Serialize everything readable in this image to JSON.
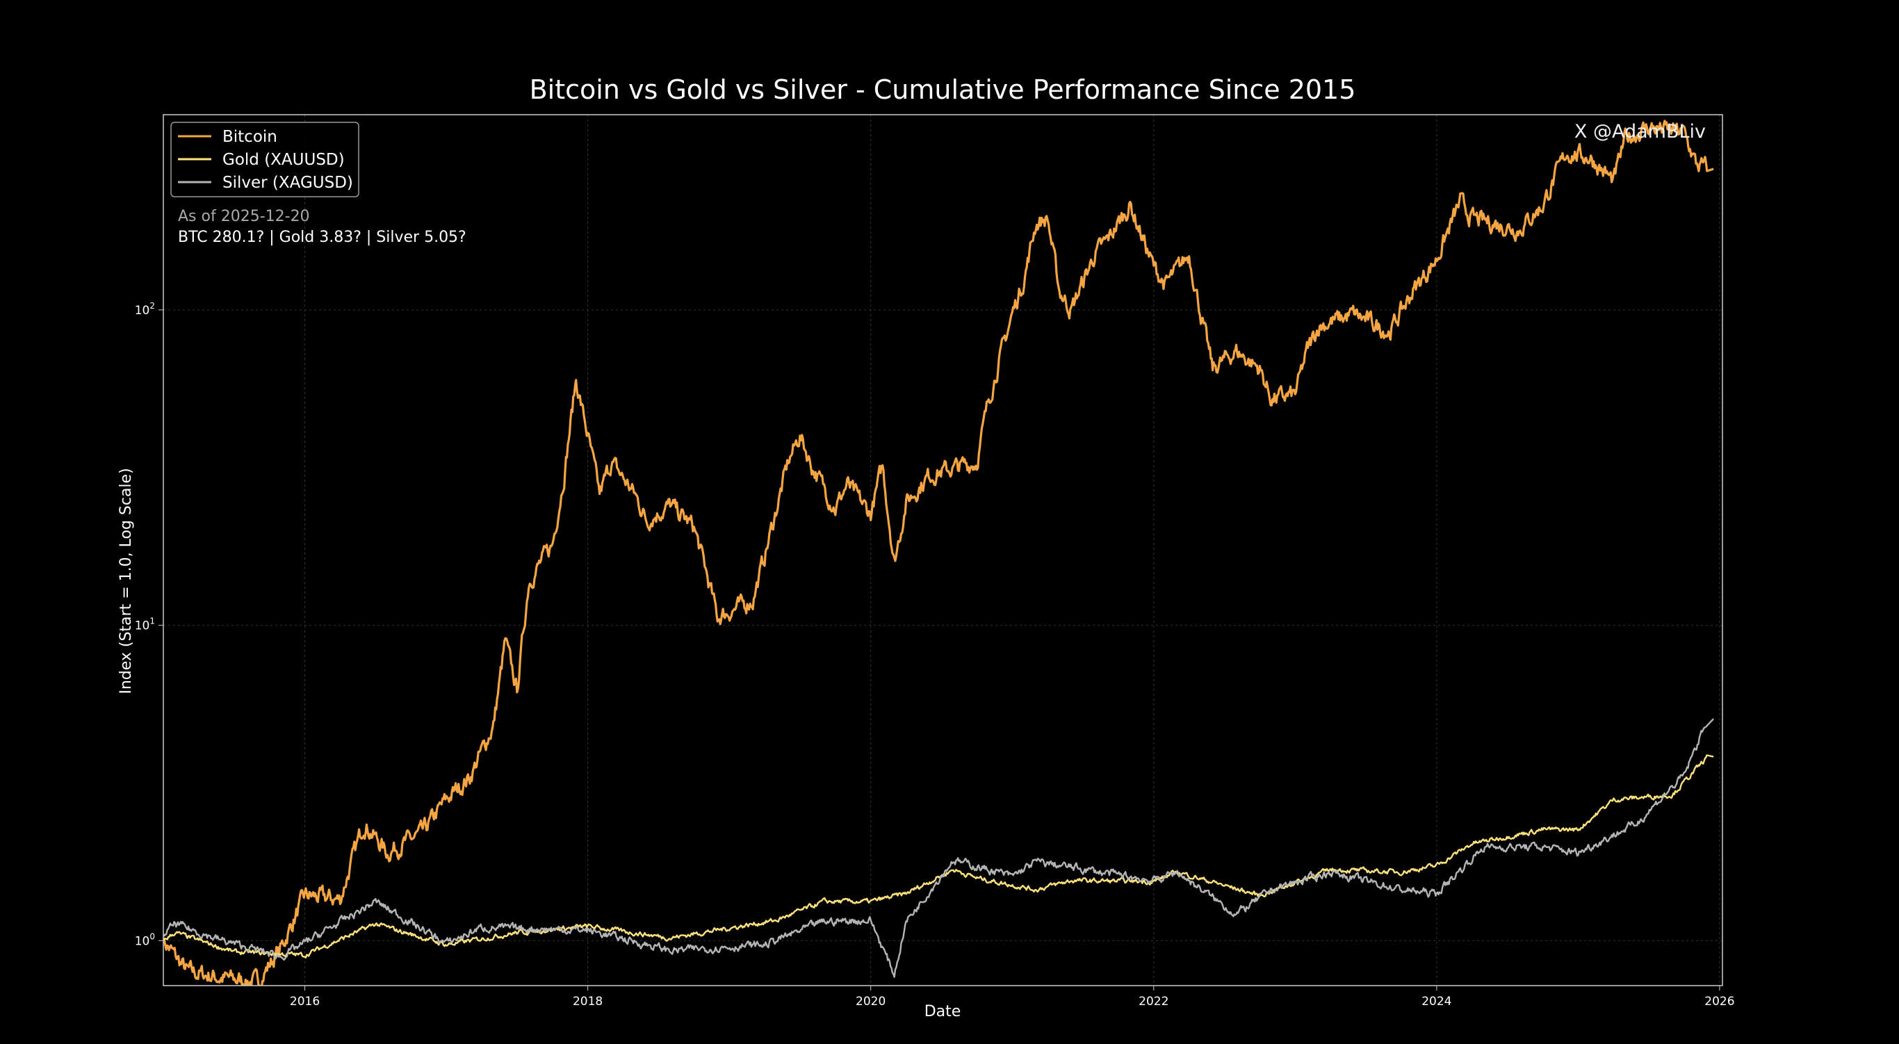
{
  "chart_data": {
    "type": "line",
    "title": "Bitcoin vs Gold vs Silver - Cumulative Performance Since 2015",
    "xlabel": "Date",
    "ylabel": "Index (Start = 1.0, Log Scale)",
    "xlim": [
      "2015-01",
      "2026-01"
    ],
    "ylim": [
      0.72,
      416
    ],
    "yscale": "log",
    "grid": true,
    "legend_position": "top-left",
    "x_ticks": [
      "2016",
      "2018",
      "2020",
      "2022",
      "2024",
      "2026"
    ],
    "y_ticks": [
      {
        "value": 1,
        "base": "10",
        "exp": "0"
      },
      {
        "value": 10,
        "base": "10",
        "exp": "1"
      },
      {
        "value": 100,
        "base": "10",
        "exp": "2"
      }
    ],
    "watermark": "X @AdamBLiv",
    "annotation": {
      "line1": "As of 2025-12-20",
      "line2": "BTC 280.1?  |  Gold 3.83?  |  Silver 5.05?"
    },
    "series": [
      {
        "name": "Bitcoin",
        "color": "#f5a542",
        "points": [
          [
            "2015-01",
            1.0
          ],
          [
            "2015-03",
            0.8
          ],
          [
            "2015-06",
            0.76
          ],
          [
            "2015-09",
            0.74
          ],
          [
            "2015-11",
            0.95
          ],
          [
            "2016-01",
            1.39
          ],
          [
            "2016-04",
            1.35
          ],
          [
            "2016-06",
            2.36
          ],
          [
            "2016-08",
            1.9
          ],
          [
            "2016-11",
            2.2
          ],
          [
            "2017-01",
            2.8
          ],
          [
            "2017-03",
            3.3
          ],
          [
            "2017-05",
            4.8
          ],
          [
            "2017-06",
            8.9
          ],
          [
            "2017-07",
            6.2
          ],
          [
            "2017-08",
            13.8
          ],
          [
            "2017-10",
            18
          ],
          [
            "2017-11",
            30
          ],
          [
            "2017-12",
            60
          ],
          [
            "2018-01",
            40
          ],
          [
            "2018-02",
            26
          ],
          [
            "2018-03",
            33
          ],
          [
            "2018-05",
            26
          ],
          [
            "2018-06",
            21.5
          ],
          [
            "2018-08",
            24
          ],
          [
            "2018-10",
            20.5
          ],
          [
            "2018-11",
            15
          ],
          [
            "2018-12",
            10.6
          ],
          [
            "2019-03",
            12
          ],
          [
            "2019-04",
            16.5
          ],
          [
            "2019-06",
            33
          ],
          [
            "2019-07",
            40
          ],
          [
            "2019-08",
            32
          ],
          [
            "2019-10",
            23.5
          ],
          [
            "2019-11",
            28
          ],
          [
            "2020-01",
            22.5
          ],
          [
            "2020-02",
            32
          ],
          [
            "2020-03",
            15.8
          ],
          [
            "2020-04",
            24.5
          ],
          [
            "2020-06",
            30
          ],
          [
            "2020-10",
            33
          ],
          [
            "2020-11",
            52
          ],
          [
            "2021-01",
            97
          ],
          [
            "2021-02",
            125
          ],
          [
            "2021-03",
            188
          ],
          [
            "2021-04",
            195
          ],
          [
            "2021-05",
            115
          ],
          [
            "2021-06",
            100
          ],
          [
            "2021-08",
            150
          ],
          [
            "2021-09",
            165
          ],
          [
            "2021-11",
            215
          ],
          [
            "2022-01",
            137
          ],
          [
            "2022-02",
            120
          ],
          [
            "2022-04",
            150
          ],
          [
            "2022-05",
            97
          ],
          [
            "2022-06",
            65
          ],
          [
            "2022-08",
            74
          ],
          [
            "2022-10",
            65
          ],
          [
            "2022-11",
            52
          ],
          [
            "2023-01",
            54
          ],
          [
            "2023-02",
            74
          ],
          [
            "2023-03",
            89
          ],
          [
            "2023-06",
            97
          ],
          [
            "2023-09",
            85
          ],
          [
            "2023-11",
            115
          ],
          [
            "2024-01",
            145
          ],
          [
            "2024-03",
            220
          ],
          [
            "2024-04",
            195
          ],
          [
            "2024-08",
            180
          ],
          [
            "2024-10",
            215
          ],
          [
            "2024-12",
            315
          ],
          [
            "2025-02",
            305
          ],
          [
            "2025-04",
            255
          ],
          [
            "2025-05",
            350
          ],
          [
            "2025-07",
            380
          ],
          [
            "2025-10",
            365
          ],
          [
            "2025-11",
            290
          ],
          [
            "2025-12",
            280
          ]
        ]
      },
      {
        "name": "Gold (XAUUSD)",
        "color": "#ffe27a",
        "points": [
          [
            "2015-01",
            1.0
          ],
          [
            "2015-02",
            1.06
          ],
          [
            "2015-07",
            0.92
          ],
          [
            "2016-01",
            0.9
          ],
          [
            "2016-07",
            1.13
          ],
          [
            "2017-01",
            0.97
          ],
          [
            "2017-07",
            1.06
          ],
          [
            "2018-01",
            1.11
          ],
          [
            "2018-08",
            1.02
          ],
          [
            "2019-05",
            1.16
          ],
          [
            "2019-09",
            1.33
          ],
          [
            "2020-01",
            1.33
          ],
          [
            "2020-04",
            1.41
          ],
          [
            "2020-08",
            1.68
          ],
          [
            "2020-10",
            1.58
          ],
          [
            "2021-03",
            1.45
          ],
          [
            "2021-06",
            1.55
          ],
          [
            "2022-01",
            1.54
          ],
          [
            "2022-03",
            1.65
          ],
          [
            "2022-10",
            1.39
          ],
          [
            "2023-04",
            1.68
          ],
          [
            "2023-10",
            1.65
          ],
          [
            "2024-01",
            1.73
          ],
          [
            "2024-04",
            2.03
          ],
          [
            "2024-10",
            2.25
          ],
          [
            "2025-01",
            2.25
          ],
          [
            "2025-04",
            2.8
          ],
          [
            "2025-09",
            2.9
          ],
          [
            "2025-12",
            3.83
          ]
        ]
      },
      {
        "name": "Silver (XAGUSD)",
        "color": "#b4b4b4",
        "points": [
          [
            "2015-01",
            1.05
          ],
          [
            "2015-02",
            1.13
          ],
          [
            "2015-06",
            1.0
          ],
          [
            "2015-11",
            0.89
          ],
          [
            "2016-07",
            1.33
          ],
          [
            "2017-01",
            0.98
          ],
          [
            "2017-04",
            1.1
          ],
          [
            "2018-01",
            1.08
          ],
          [
            "2018-08",
            0.93
          ],
          [
            "2019-04",
            0.97
          ],
          [
            "2019-09",
            1.15
          ],
          [
            "2020-01",
            1.16
          ],
          [
            "2020-03",
            0.78
          ],
          [
            "2020-04",
            1.15
          ],
          [
            "2020-08",
            1.8
          ],
          [
            "2021-01",
            1.6
          ],
          [
            "2021-03",
            1.78
          ],
          [
            "2022-01",
            1.55
          ],
          [
            "2022-03",
            1.65
          ],
          [
            "2022-08",
            1.21
          ],
          [
            "2022-11",
            1.45
          ],
          [
            "2023-04",
            1.65
          ],
          [
            "2023-10",
            1.45
          ],
          [
            "2024-01",
            1.41
          ],
          [
            "2024-05",
            1.98
          ],
          [
            "2024-10",
            1.98
          ],
          [
            "2025-01",
            1.9
          ],
          [
            "2025-06",
            2.36
          ],
          [
            "2025-10",
            3.35
          ],
          [
            "2025-12",
            5.05
          ]
        ]
      }
    ]
  }
}
